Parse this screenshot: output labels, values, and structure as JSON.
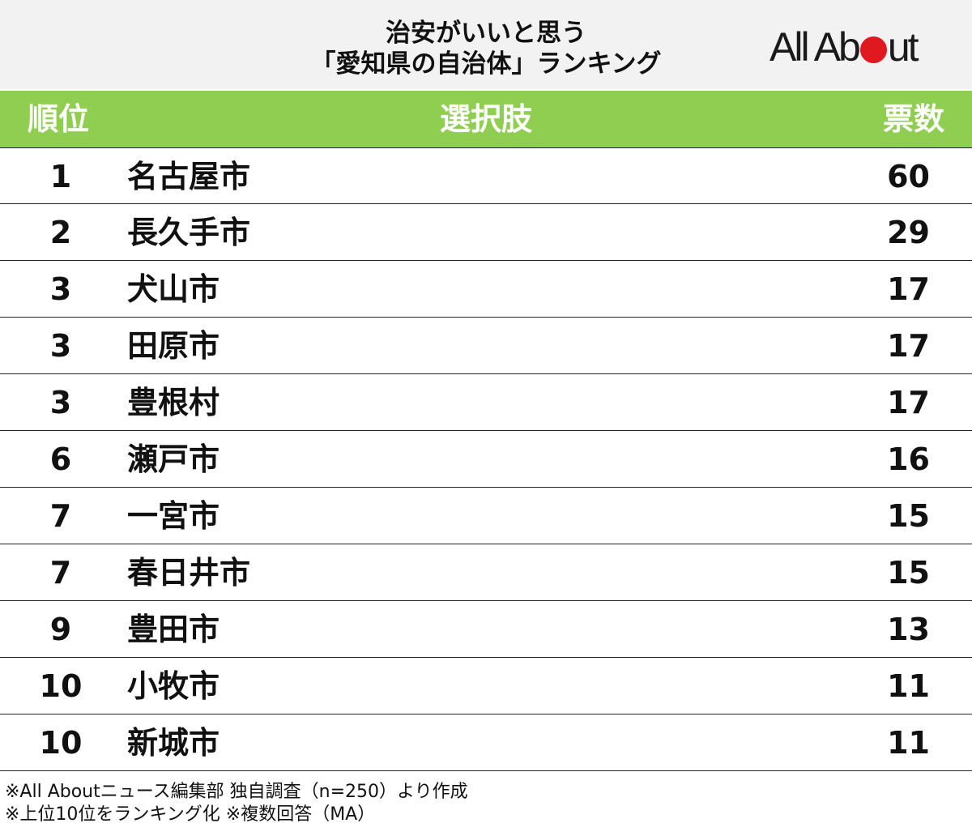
{
  "title": {
    "line1": "治安がいいと思う",
    "line2": "「愛知県の自治体」ランキング"
  },
  "logo": {
    "part1": "All Ab",
    "part2": "ut",
    "accent_color": "#e0181f"
  },
  "table": {
    "header_color": "#8fce50",
    "headers": {
      "rank": "順位",
      "choice": "選択肢",
      "votes": "票数"
    },
    "rows": [
      {
        "rank": "1",
        "name": "名古屋市",
        "votes": "60"
      },
      {
        "rank": "2",
        "name": "長久手市",
        "votes": "29"
      },
      {
        "rank": "3",
        "name": "犬山市",
        "votes": "17"
      },
      {
        "rank": "3",
        "name": "田原市",
        "votes": "17"
      },
      {
        "rank": "3",
        "name": "豊根村",
        "votes": "17"
      },
      {
        "rank": "6",
        "name": "瀬戸市",
        "votes": "16"
      },
      {
        "rank": "7",
        "name": "一宮市",
        "votes": "15"
      },
      {
        "rank": "7",
        "name": "春日井市",
        "votes": "15"
      },
      {
        "rank": "9",
        "name": "豊田市",
        "votes": "13"
      },
      {
        "rank": "10",
        "name": "小牧市",
        "votes": "11"
      },
      {
        "rank": "10",
        "name": "新城市",
        "votes": "11"
      }
    ]
  },
  "footnotes": {
    "line1": "※All Aboutニュース編集部 独自調査（n=250）より作成",
    "line2": "※上位10位をランキング化 ※複数回答（MA）"
  }
}
